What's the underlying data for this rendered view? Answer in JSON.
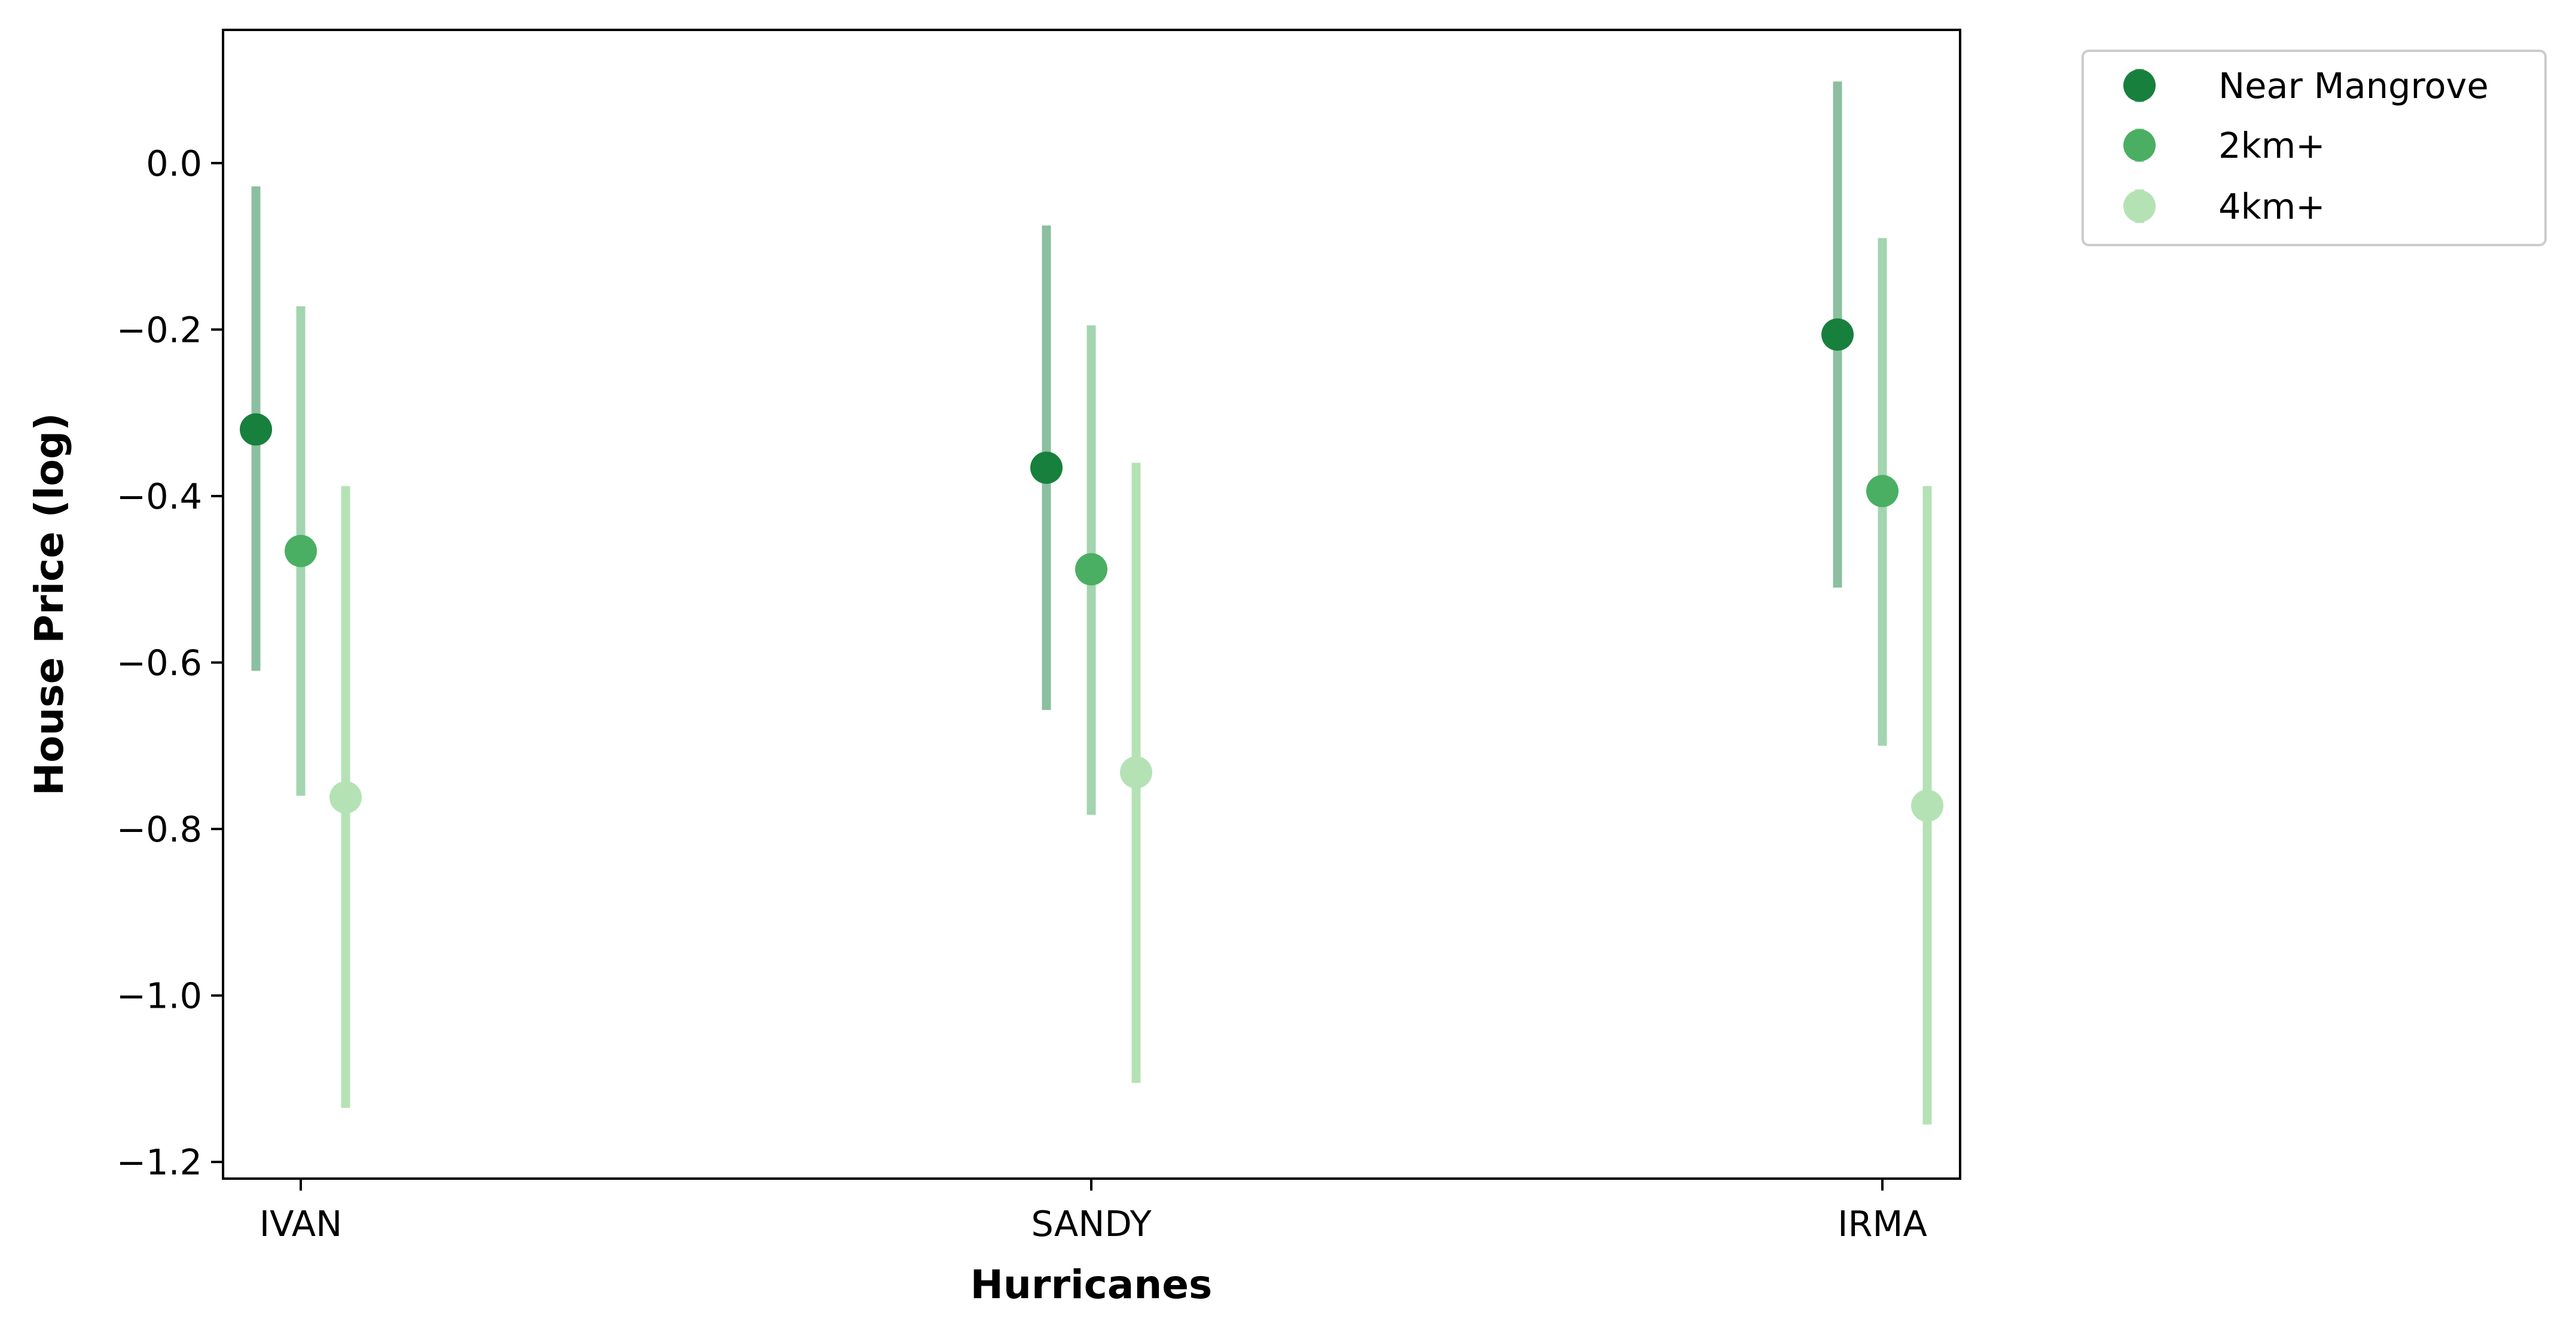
{
  "chart_data": {
    "type": "scatter",
    "subtype": "point-with-error-bars",
    "title": "",
    "xlabel": "Hurricanes",
    "ylabel": "House Price (log)",
    "categories": [
      "IVAN",
      "SANDY",
      "IRMA"
    ],
    "ylim": [
      -1.22,
      0.16
    ],
    "yticks": [
      0.0,
      -0.2,
      -0.4,
      -0.6,
      -0.8,
      -1.0,
      -1.2
    ],
    "ytick_labels": [
      "0.0",
      "−0.2",
      "−0.4",
      "−0.6",
      "−0.8",
      "−1.0",
      "−1.2"
    ],
    "grid": false,
    "legend_position": "outside-top-right",
    "series": [
      {
        "name": "Near Mangrove",
        "color": "#17803c",
        "errorbar_color": "#8bbf9f",
        "values": [
          -0.32,
          -0.366,
          -0.206
        ],
        "lower": [
          -0.61,
          -0.657,
          -0.51
        ],
        "upper": [
          -0.028,
          -0.075,
          0.098
        ]
      },
      {
        "name": "2km+",
        "color": "#4aaf62",
        "errorbar_color": "#a2d5b0",
        "values": [
          -0.466,
          -0.488,
          -0.394
        ],
        "lower": [
          -0.76,
          -0.783,
          -0.7
        ],
        "upper": [
          -0.172,
          -0.195,
          -0.09
        ]
      },
      {
        "name": "4km+",
        "color": "#b5e2b5",
        "errorbar_color": "#b5e2b5",
        "values": [
          -0.762,
          -0.732,
          -0.772
        ],
        "lower": [
          -1.135,
          -1.105,
          -1.155
        ],
        "upper": [
          -0.388,
          -0.36,
          -0.388
        ]
      }
    ]
  }
}
